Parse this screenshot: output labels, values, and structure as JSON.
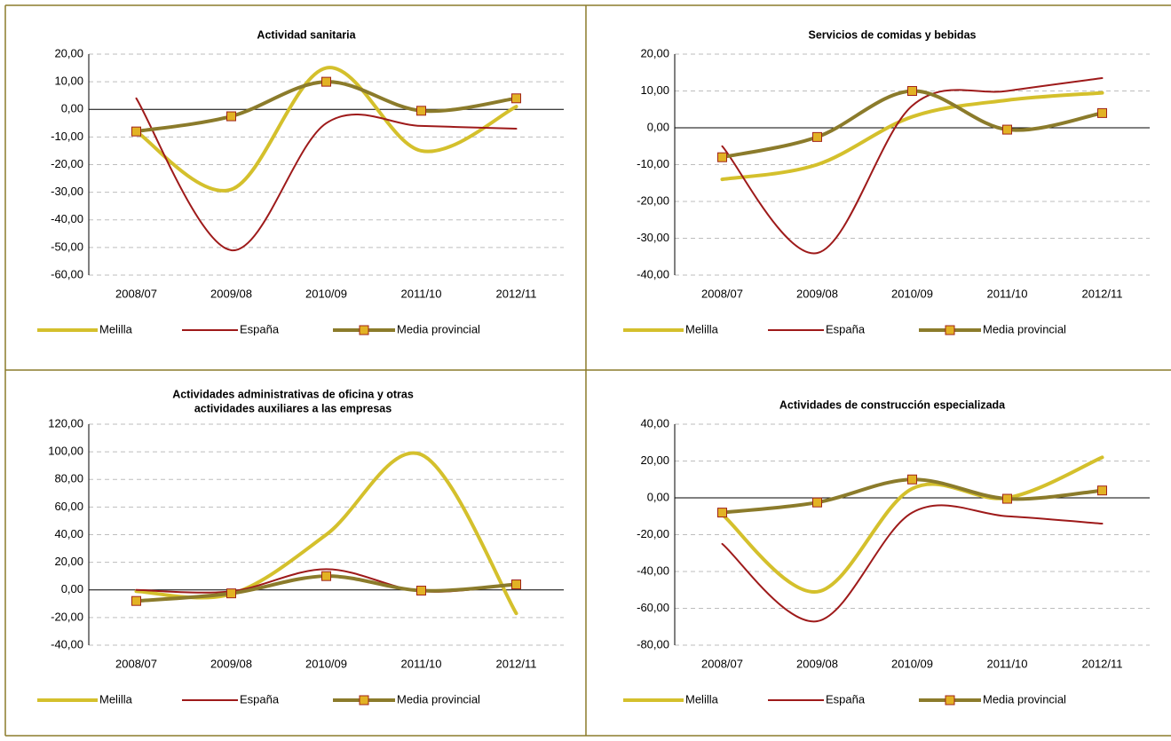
{
  "chart_data": [
    {
      "type": "line",
      "title": "Actividad sanitaria",
      "categories": [
        "2008/07",
        "2009/08",
        "2010/09",
        "2011/10",
        "2012/11"
      ],
      "series": [
        {
          "name": "Melilla",
          "color": "#d4c02c",
          "values": [
            -8,
            -29,
            15,
            -15,
            1
          ]
        },
        {
          "name": "España",
          "color": "#9e1a1a",
          "values": [
            4,
            -51,
            -5,
            -6,
            -7
          ]
        },
        {
          "name": "Media provincial",
          "color": "#8b7b2b",
          "marker": "square",
          "marker_color": "#e2b224",
          "marker_edge": "#a0241a",
          "values": [
            -8,
            -2.5,
            10,
            -0.5,
            4
          ]
        }
      ],
      "ylim": [
        -60,
        20
      ],
      "yticks": [
        {
          "value": -60,
          "label": "-60,00"
        },
        {
          "value": -50,
          "label": "-50,00"
        },
        {
          "value": -40,
          "label": "-40,00"
        },
        {
          "value": -30,
          "label": "-30,00"
        },
        {
          "value": -20,
          "label": "-20,00"
        },
        {
          "value": -10,
          "label": "-10,00"
        },
        {
          "value": 0,
          "label": "0,00"
        },
        {
          "value": 10,
          "label": "10,00"
        },
        {
          "value": 20,
          "label": "20,00"
        }
      ],
      "grid": true,
      "legend": "bottom"
    },
    {
      "type": "line",
      "title": "Servicios de comidas y bebidas",
      "categories": [
        "2008/07",
        "2009/08",
        "2010/09",
        "2011/10",
        "2012/11"
      ],
      "series": [
        {
          "name": "Melilla",
          "color": "#d4c02c",
          "values": [
            -14,
            -10,
            3,
            7.5,
            9.5
          ]
        },
        {
          "name": "España",
          "color": "#9e1a1a",
          "values": [
            -5,
            -34,
            6,
            10,
            13.5
          ]
        },
        {
          "name": "Media provincial",
          "color": "#8b7b2b",
          "marker": "square",
          "marker_color": "#e2b224",
          "marker_edge": "#a0241a",
          "values": [
            -8,
            -2.5,
            10,
            -0.5,
            4
          ]
        }
      ],
      "ylim": [
        -40,
        20
      ],
      "yticks": [
        {
          "value": -40,
          "label": "-40,00"
        },
        {
          "value": -30,
          "label": "-30,00"
        },
        {
          "value": -20,
          "label": "-20,00"
        },
        {
          "value": -10,
          "label": "-10,00"
        },
        {
          "value": 0,
          "label": "0,00"
        },
        {
          "value": 10,
          "label": "10,00"
        },
        {
          "value": 20,
          "label": "20,00"
        }
      ],
      "grid": true,
      "legend": "bottom"
    },
    {
      "type": "line",
      "title": [
        "Actividades administrativas de oficina y otras",
        "actividades auxiliares a las empresas"
      ],
      "categories": [
        "2008/07",
        "2009/08",
        "2010/09",
        "2011/10",
        "2012/11"
      ],
      "series": [
        {
          "name": "Melilla",
          "color": "#d4c02c",
          "values": [
            -1,
            -3,
            40,
            98,
            -17
          ]
        },
        {
          "name": "España",
          "color": "#9e1a1a",
          "values": [
            0,
            -1,
            15,
            -1,
            4
          ]
        },
        {
          "name": "Media provincial",
          "color": "#8b7b2b",
          "marker": "square",
          "marker_color": "#e2b224",
          "marker_edge": "#a0241a",
          "values": [
            -8,
            -2.5,
            10,
            -0.5,
            4
          ]
        }
      ],
      "ylim": [
        -40,
        120
      ],
      "yticks": [
        {
          "value": -40,
          "label": "-40,00"
        },
        {
          "value": -20,
          "label": "-20,00"
        },
        {
          "value": 0,
          "label": "0,00"
        },
        {
          "value": 20,
          "label": "20,00"
        },
        {
          "value": 40,
          "label": "40,00"
        },
        {
          "value": 60,
          "label": "60,00"
        },
        {
          "value": 80,
          "label": "80,00"
        },
        {
          "value": 100,
          "label": "100,00"
        },
        {
          "value": 120,
          "label": "120,00"
        }
      ],
      "grid": true,
      "legend": "bottom"
    },
    {
      "type": "line",
      "title": "Actividades de construcción especializada",
      "categories": [
        "2008/07",
        "2009/08",
        "2010/09",
        "2011/10",
        "2012/11"
      ],
      "series": [
        {
          "name": "Melilla",
          "color": "#d4c02c",
          "values": [
            -9,
            -51,
            5,
            0,
            22
          ]
        },
        {
          "name": "España",
          "color": "#9e1a1a",
          "values": [
            -25,
            -67,
            -8,
            -10,
            -14
          ]
        },
        {
          "name": "Media provincial",
          "color": "#8b7b2b",
          "marker": "square",
          "marker_color": "#e2b224",
          "marker_edge": "#a0241a",
          "values": [
            -8,
            -2.5,
            10,
            -0.5,
            4
          ]
        }
      ],
      "ylim": [
        -80,
        40
      ],
      "yticks": [
        {
          "value": -80,
          "label": "-80,00"
        },
        {
          "value": -60,
          "label": "-60,00"
        },
        {
          "value": -40,
          "label": "-40,00"
        },
        {
          "value": -20,
          "label": "-20,00"
        },
        {
          "value": 0,
          "label": "0,00"
        },
        {
          "value": 20,
          "label": "20,00"
        },
        {
          "value": 40,
          "label": "40,00"
        }
      ],
      "grid": true,
      "legend": "bottom"
    }
  ]
}
